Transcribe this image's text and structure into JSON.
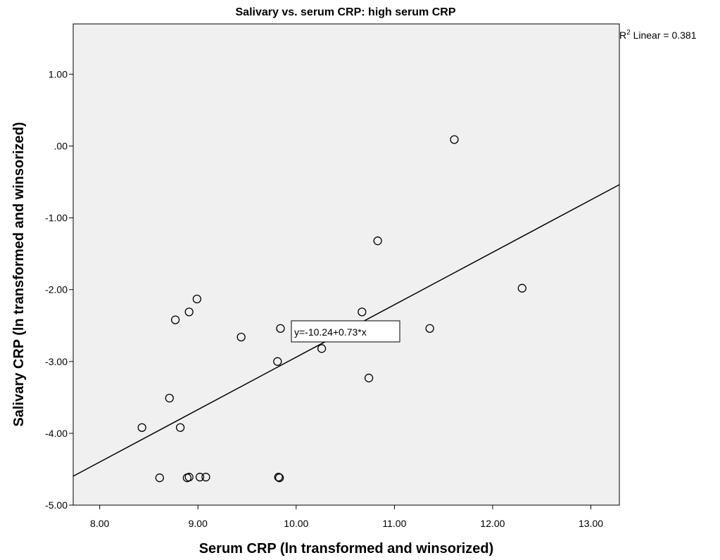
{
  "chart_data": {
    "type": "scatter",
    "title": "Salivary vs. serum CRP: high serum CRP",
    "xlabel": "Serum CRP (ln transformed and winsorized)",
    "ylabel": "Salivary CRP (ln transformed and winsorized)",
    "xlim": [
      7.73,
      13.29
    ],
    "ylim": [
      -5.0,
      1.7
    ],
    "x_ticks": [
      8.0,
      9.0,
      10.0,
      11.0,
      12.0,
      13.0
    ],
    "x_tick_labels": [
      "8.00",
      "9.00",
      "10.00",
      "11.00",
      "12.00",
      "13.00"
    ],
    "y_ticks": [
      1.0,
      0.0,
      -1.0,
      -2.0,
      -3.0,
      -4.0,
      -5.0
    ],
    "y_tick_labels": [
      "1.00",
      ".00",
      "-1.00",
      "-2.00",
      "-3.00",
      "-4.00",
      "-5.00"
    ],
    "grid": false,
    "points": {
      "x": [
        8.43,
        8.61,
        8.71,
        8.77,
        8.82,
        8.89,
        8.91,
        8.91,
        8.99,
        9.02,
        9.08,
        9.44,
        9.81,
        9.82,
        9.83,
        9.84,
        10.26,
        10.67,
        10.74,
        10.83,
        11.36,
        11.61,
        12.3
      ],
      "y": [
        -3.92,
        -4.62,
        -3.51,
        -2.42,
        -3.92,
        -4.62,
        -4.61,
        -2.31,
        -2.13,
        -4.61,
        -4.61,
        -2.66,
        -3.0,
        -4.61,
        -4.62,
        -2.54,
        -2.82,
        -2.31,
        -3.23,
        -1.32,
        -2.54,
        0.09,
        -1.98
      ]
    },
    "fit_line": {
      "intercept": -10.24,
      "slope": 0.73,
      "equation_label": "y=-10.24+0.73*x",
      "r2_label_prefix": "R",
      "r2_label_sup": "2",
      "r2_label_suffix": " Linear = 0.381"
    },
    "colors": {
      "plot_background": "#f0f0f0",
      "marker_stroke": "#000000",
      "line": "#000000"
    }
  }
}
